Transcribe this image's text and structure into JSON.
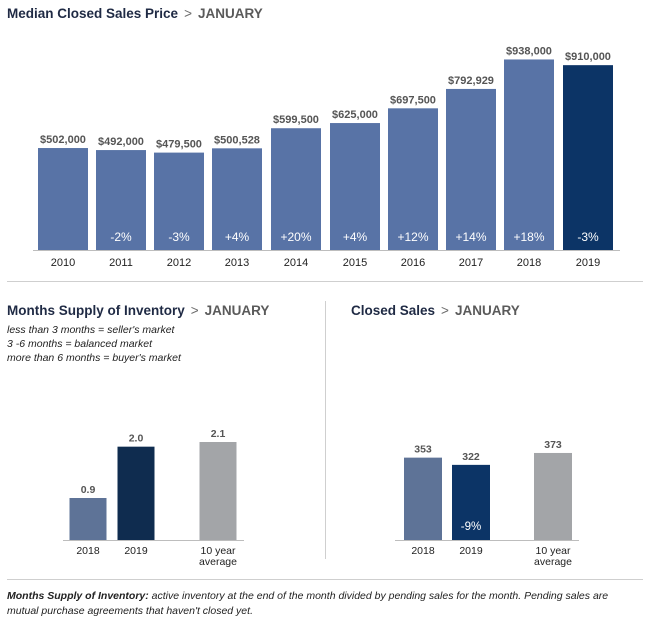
{
  "colors": {
    "bar": "#5873a6",
    "highlight": "#0c3466",
    "avg": "#a3a5a8",
    "bar_small": "#5e7397",
    "highlight_small": "#0f2c4f"
  },
  "median_price": {
    "title": "Median Closed Sales Price",
    "separator": ">",
    "month": "JANUARY"
  },
  "months_supply": {
    "title": "Months Supply of Inventory",
    "separator": ">",
    "month": "JANUARY",
    "notes": [
      "less than 3 months = seller's market",
      "3 -6 months = balanced market",
      "more than 6 months = buyer's market"
    ]
  },
  "closed_sales": {
    "title": "Closed Sales",
    "separator": ">",
    "month": "JANUARY"
  },
  "footnote": {
    "bold": "Months Supply of Inventory:",
    "text": " active inventory at the end of the month divided by pending sales for the month. Pending sales are mutual purchase agreements that haven't closed yet."
  },
  "chart_data": [
    {
      "type": "bar",
      "categories": [
        "2010",
        "2011",
        "2012",
        "2013",
        "2014",
        "2015",
        "2016",
        "2017",
        "2018",
        "2019"
      ],
      "values": [
        502000,
        492000,
        479500,
        500528,
        599500,
        625000,
        697500,
        792929,
        938000,
        910000
      ],
      "value_labels": [
        "$502,000",
        "$492,000",
        "$479,500",
        "$500,528",
        "$599,500",
        "$625,000",
        "$697,500",
        "$792,929",
        "$938,000",
        "$910,000"
      ],
      "change_labels": [
        "",
        "-2%",
        "-3%",
        "+4%",
        "+20%",
        "+4%",
        "+12%",
        "+14%",
        "+18%",
        "-3%"
      ],
      "highlight_index": 9,
      "title": "Median Closed Sales Price",
      "ylim": [
        0,
        960000
      ]
    },
    {
      "type": "bar",
      "categories": [
        "2018",
        "2019",
        "10 year\naverage"
      ],
      "values": [
        0.9,
        2.0,
        2.1
      ],
      "value_labels": [
        "0.9",
        "2.0",
        "2.1"
      ],
      "change_labels": [
        "",
        "",
        ""
      ],
      "title": "Months Supply of Inventory",
      "ylim": [
        0,
        2.4
      ]
    },
    {
      "type": "bar",
      "categories": [
        "2018",
        "2019",
        "10 year\naverage"
      ],
      "values": [
        353,
        322,
        373
      ],
      "value_labels": [
        "353",
        "322",
        "373"
      ],
      "change_labels": [
        "",
        "-9%",
        ""
      ],
      "title": "Closed Sales",
      "ylim": [
        0,
        900
      ]
    }
  ]
}
